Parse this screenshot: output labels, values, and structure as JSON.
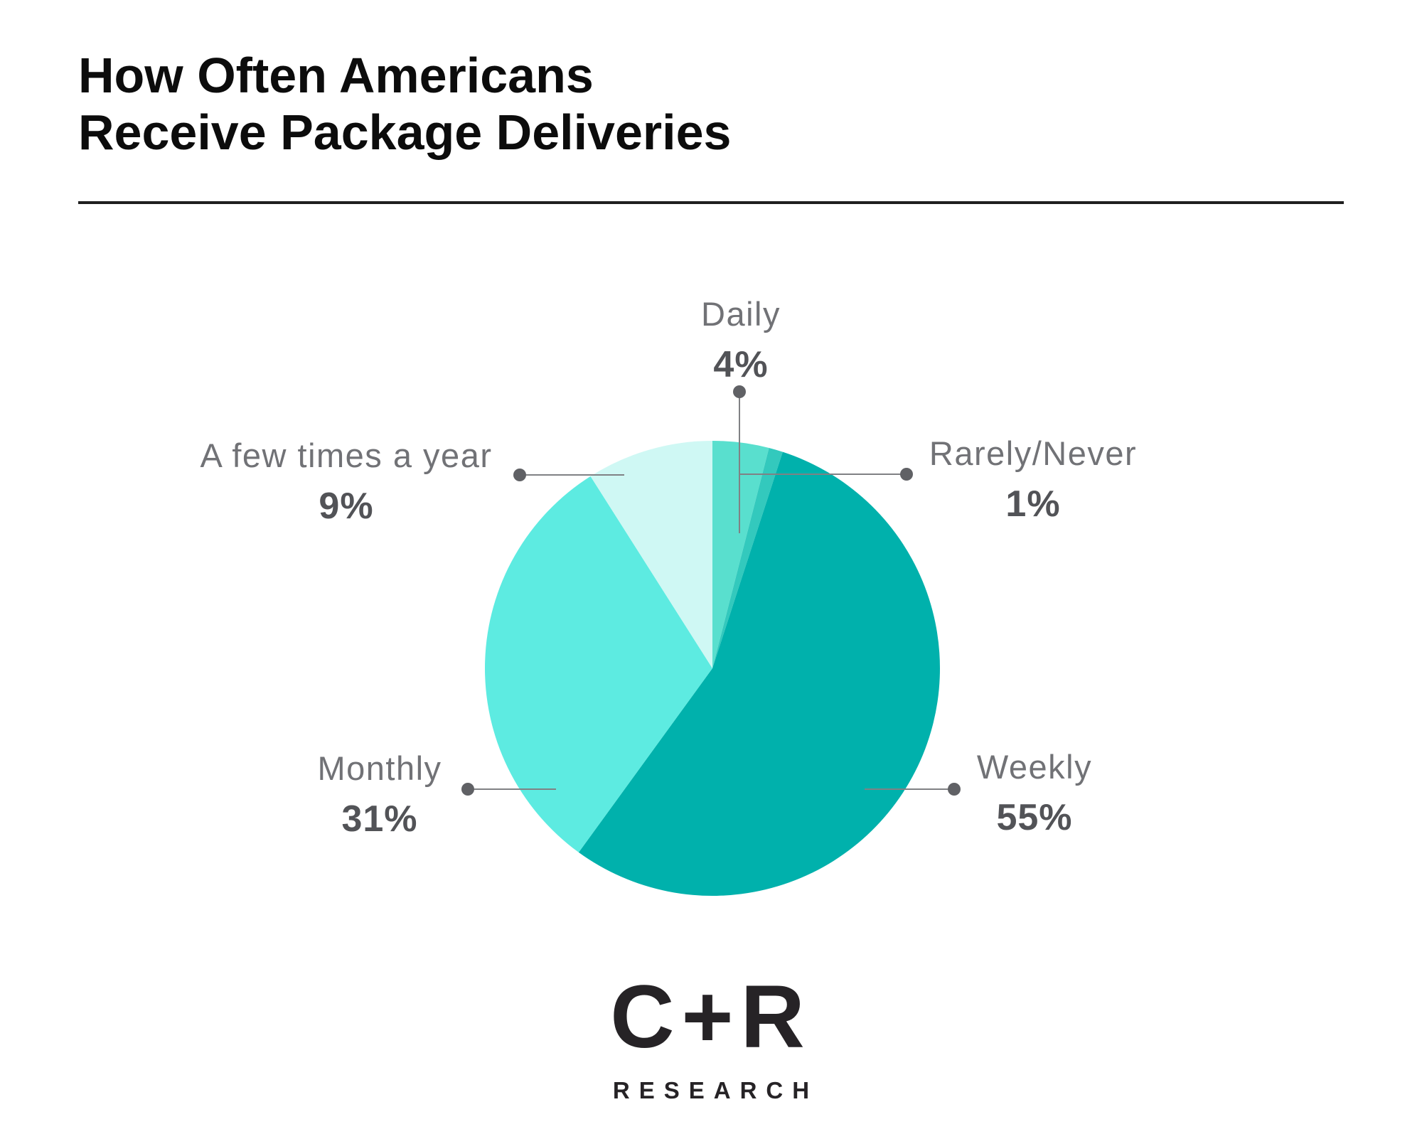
{
  "page": {
    "background": "#ffffff"
  },
  "header": {
    "title_lines": [
      "How Often Americans",
      "Receive Package Deliveries"
    ]
  },
  "chart_data": {
    "type": "pie",
    "title": "How Often Americans Receive Package Deliveries",
    "start_angle_deg": 0,
    "direction": "clockwise",
    "grid": false,
    "legend_position": "callout-labels-around-pie",
    "slices": [
      {
        "label": "Daily",
        "value": 4,
        "display_value": "4%",
        "color": "#59dfce"
      },
      {
        "label": "Rarely/Never",
        "value": 1,
        "display_value": "1%",
        "color": "#33c9bd"
      },
      {
        "label": "Weekly",
        "value": 55,
        "display_value": "55%",
        "color": "#00b1ac"
      },
      {
        "label": "Monthly",
        "value": 31,
        "display_value": "31%",
        "color": "#5debe1"
      },
      {
        "label": "A few times a year",
        "value": 9,
        "display_value": "9%",
        "color": "#cff8f4"
      }
    ]
  },
  "styles": {
    "label_color": "#717276",
    "value_color": "#525357",
    "leader_line_color": "#808184",
    "leader_dot_color": "#606165",
    "title_color": "#0c0c0c",
    "divider_color": "#1f1f1f"
  },
  "footer": {
    "logo_main": "C+R",
    "logo_sub": "RESEARCH"
  }
}
